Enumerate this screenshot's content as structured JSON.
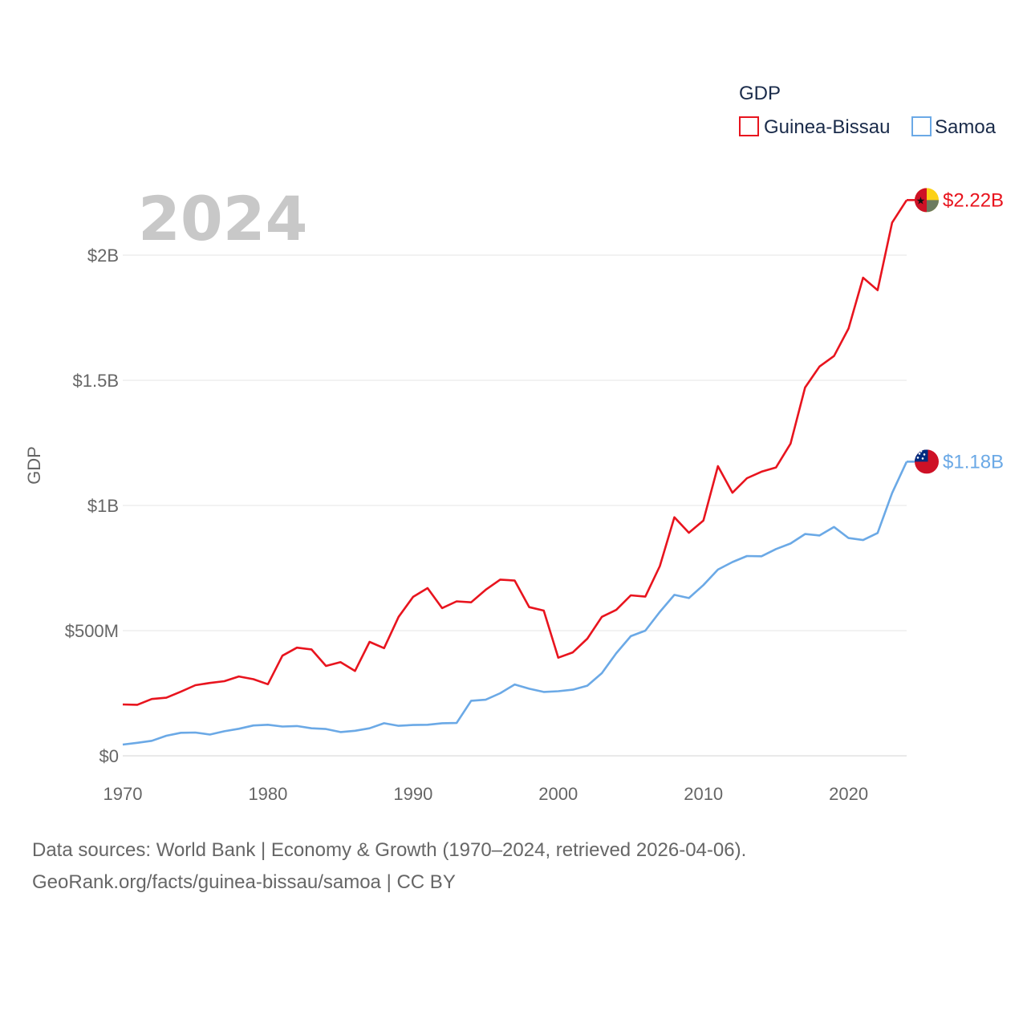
{
  "chart_data": {
    "type": "line",
    "legend_title": "GDP",
    "legend_position": "top-right",
    "year_label": "2024",
    "ylabel": "GDP",
    "xlabel": "",
    "xlim": [
      1970,
      2024
    ],
    "ylim": [
      0,
      2.3
    ],
    "grid": true,
    "x_ticks": [
      1970,
      1980,
      1990,
      2000,
      2010,
      2020
    ],
    "x_tick_labels": [
      "1970",
      "1980",
      "1990",
      "2000",
      "2010",
      "2020"
    ],
    "y_ticks": [
      0,
      0.5,
      1,
      1.5,
      2
    ],
    "y_tick_labels": [
      "$0",
      "$500M",
      "$1B",
      "$1.5B",
      "$2B"
    ],
    "x": [
      1970,
      1971,
      1972,
      1973,
      1974,
      1975,
      1976,
      1977,
      1978,
      1979,
      1980,
      1981,
      1982,
      1983,
      1984,
      1985,
      1986,
      1987,
      1988,
      1989,
      1990,
      1991,
      1992,
      1993,
      1994,
      1995,
      1996,
      1997,
      1998,
      1999,
      2000,
      2001,
      2002,
      2003,
      2004,
      2005,
      2006,
      2007,
      2008,
      2009,
      2010,
      2011,
      2012,
      2013,
      2014,
      2015,
      2016,
      2017,
      2018,
      2019,
      2020,
      2021,
      2022,
      2023,
      2024
    ],
    "series": [
      {
        "name": "Guinea-Bissau",
        "color": "#e8141e",
        "end_label": "$2.22B",
        "flag": "guinea-bissau-flag",
        "values": [
          0.205,
          0.204,
          0.227,
          0.232,
          0.256,
          0.282,
          0.291,
          0.298,
          0.317,
          0.306,
          0.286,
          0.4,
          0.432,
          0.425,
          0.359,
          0.374,
          0.339,
          0.455,
          0.43,
          0.555,
          0.635,
          0.67,
          0.59,
          0.617,
          0.613,
          0.663,
          0.704,
          0.7,
          0.594,
          0.58,
          0.392,
          0.413,
          0.468,
          0.555,
          0.583,
          0.641,
          0.636,
          0.758,
          0.953,
          0.891,
          0.94,
          1.157,
          1.051,
          1.109,
          1.135,
          1.152,
          1.247,
          1.471,
          1.555,
          1.597,
          1.707,
          1.91,
          1.86,
          2.13,
          2.22
        ]
      },
      {
        "name": "Samoa",
        "color": "#6ba9e6",
        "end_label": "$1.18B",
        "flag": "samoa-flag",
        "values": [
          0.045,
          0.052,
          0.06,
          0.08,
          0.092,
          0.093,
          0.085,
          0.098,
          0.108,
          0.121,
          0.124,
          0.117,
          0.119,
          0.11,
          0.107,
          0.095,
          0.1,
          0.11,
          0.13,
          0.12,
          0.123,
          0.124,
          0.13,
          0.131,
          0.22,
          0.224,
          0.25,
          0.285,
          0.268,
          0.255,
          0.258,
          0.264,
          0.28,
          0.33,
          0.41,
          0.478,
          0.5,
          0.575,
          0.643,
          0.63,
          0.682,
          0.744,
          0.774,
          0.798,
          0.797,
          0.826,
          0.848,
          0.886,
          0.88,
          0.914,
          0.87,
          0.862,
          0.89,
          1.05,
          1.175
        ]
      }
    ]
  },
  "footer": {
    "line1": "Data sources: World Bank | Economy & Growth (1970–2024, retrieved 2026-04-06).",
    "line2": "GeoRank.org/facts/guinea-bissau/samoa | CC BY"
  }
}
